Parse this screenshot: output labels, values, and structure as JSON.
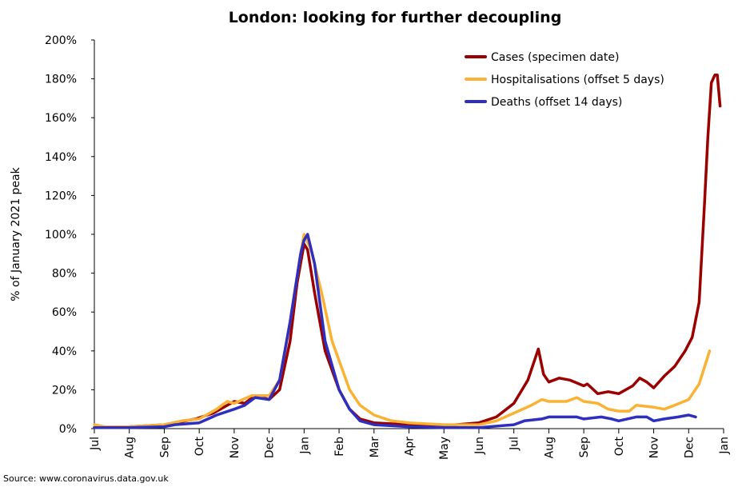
{
  "chart_data": {
    "type": "line",
    "title": "London: looking for further decoupling",
    "xlabel": "",
    "ylabel": "% of January 2021 peak",
    "ylim": [
      0,
      200
    ],
    "yticks": [
      "0%",
      "20%",
      "40%",
      "60%",
      "80%",
      "100%",
      "120%",
      "140%",
      "160%",
      "180%",
      "200%"
    ],
    "ytick_values": [
      0,
      20,
      40,
      60,
      80,
      100,
      120,
      140,
      160,
      180,
      200
    ],
    "xlim": [
      0,
      18
    ],
    "xticks": [
      "Jul",
      "Aug",
      "Sep",
      "Oct",
      "Nov",
      "Dec",
      "Jan",
      "Feb",
      "Mar",
      "Apr",
      "May",
      "Jun",
      "Jul",
      "Aug",
      "Sep",
      "Oct",
      "Nov",
      "Dec",
      "Jan"
    ],
    "grid": false,
    "legend_position": "top-right",
    "source": "Source: www.coronavirus.data.gov.uk",
    "series": [
      {
        "name": "Cases (specimen date)",
        "color": "#9b0000",
        "x": [
          0,
          1,
          2,
          2.9,
          3.4,
          4,
          4.3,
          4.6,
          5,
          5.3,
          5.6,
          5.8,
          6,
          6.1,
          6.3,
          6.6,
          7,
          7.3,
          7.6,
          8,
          9,
          10,
          11,
          11.5,
          12,
          12.4,
          12.7,
          12.85,
          13,
          13.3,
          13.6,
          14,
          14.1,
          14.4,
          14.7,
          15,
          15.4,
          15.6,
          15.8,
          16,
          16.3,
          16.6,
          16.9,
          17.1,
          17.3,
          17.45,
          17.55,
          17.65,
          17.75,
          17.82,
          17.9
        ],
        "y": [
          0.5,
          1,
          2,
          5,
          8,
          14,
          13,
          17,
          15,
          20,
          45,
          75,
          95,
          92,
          70,
          40,
          20,
          10,
          5,
          3,
          2,
          1.5,
          3,
          6,
          13,
          25,
          41,
          28,
          24,
          26,
          25,
          22,
          23,
          18,
          19,
          18,
          22,
          26,
          24,
          21,
          27,
          32,
          40,
          47,
          65,
          115,
          150,
          178,
          182,
          182,
          166
        ]
      },
      {
        "name": "Hospitalisations (offset 5 days)",
        "color": "#f9b233",
        "x": [
          0,
          0.3,
          1,
          2,
          2.5,
          3,
          3.5,
          3.8,
          4,
          4.5,
          5,
          5.3,
          5.6,
          5.9,
          6,
          6.2,
          6.5,
          6.8,
          7,
          7.3,
          7.6,
          8,
          8.5,
          9,
          10,
          11,
          11.5,
          12,
          12.5,
          12.8,
          13,
          13.5,
          13.8,
          14,
          14.4,
          14.7,
          15,
          15.3,
          15.5,
          16,
          16.3,
          16.6,
          17,
          17.3,
          17.6
        ],
        "y": [
          2,
          1,
          1,
          2,
          4,
          5,
          10,
          14,
          13,
          17,
          17,
          25,
          55,
          90,
          100,
          92,
          70,
          45,
          35,
          20,
          12,
          7,
          4,
          3,
          2,
          2,
          4,
          8,
          12,
          15,
          14,
          14,
          16,
          14,
          13,
          10,
          9,
          9,
          12,
          11,
          10,
          12,
          15,
          23,
          40
        ]
      },
      {
        "name": "Deaths (offset 14 days)",
        "color": "#2e2ebf",
        "x": [
          0,
          1,
          2,
          2.3,
          3,
          3.5,
          4,
          4.3,
          4.6,
          5,
          5.3,
          5.6,
          5.9,
          6,
          6.1,
          6.3,
          6.6,
          7,
          7.3,
          7.6,
          8,
          9,
          10,
          11,
          12,
          12.3,
          12.8,
          13,
          13.5,
          13.8,
          14,
          14.5,
          14.8,
          15,
          15.5,
          15.8,
          16,
          16.3,
          16.7,
          17,
          17.2
        ],
        "y": [
          0.5,
          0.5,
          1,
          2,
          3,
          7,
          10,
          12,
          16,
          15,
          25,
          55,
          90,
          97,
          100,
          85,
          45,
          20,
          10,
          4,
          2,
          1,
          0.5,
          0.5,
          2,
          4,
          5,
          6,
          6,
          6,
          5,
          6,
          5,
          4,
          6,
          6,
          4,
          5,
          6,
          7,
          6
        ]
      }
    ]
  }
}
